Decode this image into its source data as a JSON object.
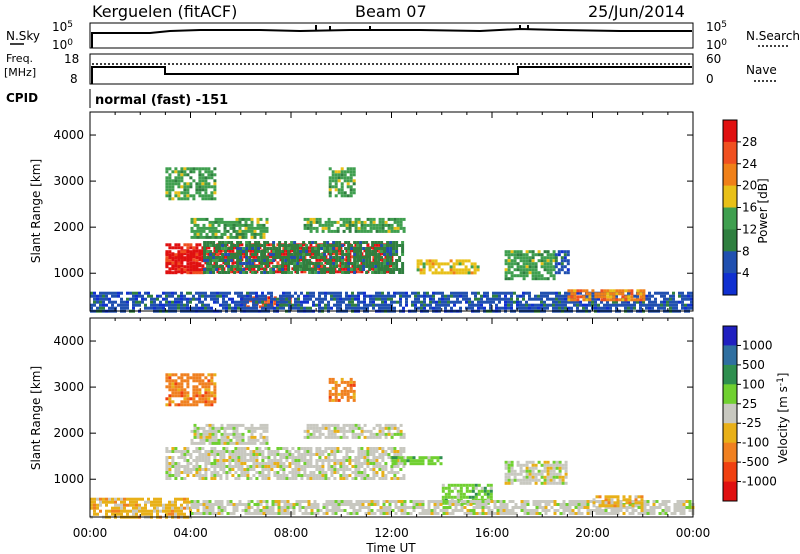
{
  "header": {
    "station": "Kerguelen (fitACF)",
    "beam": "Beam 07",
    "date": "25/Jun/2014"
  },
  "noise_panel": {
    "left_label": "N.Sky",
    "right_label": "N.Search",
    "ticks_left": [
      "10^5",
      "10^0"
    ],
    "ticks_right": [
      "10^5",
      "10^0"
    ]
  },
  "freq_panel": {
    "left_label_line1": "Freq.",
    "left_label_line2": "[MHz]",
    "left_ticks": [
      "18",
      "8"
    ],
    "right_label": "Nave",
    "right_ticks": [
      "60",
      "0"
    ]
  },
  "cpid": {
    "label": "CPID",
    "value": "normal (fast) -151"
  },
  "x_axis": {
    "title": "Time UT",
    "ticks": [
      "00:00",
      "04:00",
      "08:00",
      "12:00",
      "16:00",
      "20:00",
      "00:00"
    ]
  },
  "colors": {
    "power": [
      "#1030d0",
      "#2050b0",
      "#2f7f3f",
      "#3f9f4f",
      "#e8c018",
      "#f08018",
      "#f05020",
      "#e01010"
    ],
    "velocity": [
      "#2020c0",
      "#2f6fa0",
      "#2f8f4f",
      "#70d030",
      "#c8c8c0",
      "#e8b018",
      "#f08020",
      "#f04010",
      "#e01010"
    ]
  },
  "chart_data": [
    {
      "type": "heatmap",
      "title": "",
      "xlabel": "",
      "ylabel": "Slant Range [km]",
      "xlim": [
        0,
        24
      ],
      "ylim": [
        180,
        4500
      ],
      "y_ticks": [
        "1000",
        "2000",
        "3000",
        "4000"
      ],
      "colorbar_label": "Power [dB]",
      "colorbar_ticks": [
        "4",
        "8",
        "12",
        "16",
        "20",
        "24",
        "28"
      ],
      "regions": [
        {
          "x0": 3.0,
          "x1": 12.0,
          "y0": 1050,
          "y1": 1650,
          "level": 7
        },
        {
          "x0": 3.0,
          "x1": 4.5,
          "y0": 1000,
          "y1": 1500,
          "level": 7
        },
        {
          "x0": 4.5,
          "x1": 12.5,
          "y0": 1000,
          "y1": 1700,
          "level": 2
        },
        {
          "x0": 6.0,
          "x1": 8.0,
          "y0": 250,
          "y1": 500,
          "level": 6
        },
        {
          "x0": 4.0,
          "x1": 7.0,
          "y0": 1800,
          "y1": 2200,
          "level": 3
        },
        {
          "x0": 8.5,
          "x1": 12.5,
          "y0": 1900,
          "y1": 2200,
          "level": 3
        },
        {
          "x0": 3.0,
          "x1": 5.0,
          "y0": 2600,
          "y1": 3300,
          "level": 3
        },
        {
          "x0": 9.5,
          "x1": 10.5,
          "y0": 2700,
          "y1": 3300,
          "level": 3
        },
        {
          "x0": 13.0,
          "x1": 15.5,
          "y0": 1000,
          "y1": 1300,
          "level": 4
        },
        {
          "x0": 16.5,
          "x1": 18.5,
          "y0": 900,
          "y1": 1500,
          "level": 3
        },
        {
          "x0": 18.5,
          "x1": 19.0,
          "y0": 1000,
          "y1": 1500,
          "level": 1
        },
        {
          "x0": 0.0,
          "x1": 24.0,
          "y0": 200,
          "y1": 600,
          "level": 1
        },
        {
          "x0": 19.0,
          "x1": 22.0,
          "y0": 400,
          "y1": 650,
          "level": 5
        }
      ]
    },
    {
      "type": "heatmap",
      "title": "",
      "xlabel": "Time UT",
      "ylabel": "Slant Range [km]",
      "xlim": [
        0,
        24
      ],
      "ylim": [
        180,
        4500
      ],
      "y_ticks": [
        "1000",
        "2000",
        "3000",
        "4000"
      ],
      "colorbar_label": "Velocity [m s^-1]",
      "colorbar_ticks": [
        "1000",
        "500",
        "100",
        "25",
        "-25",
        "-100",
        "-500",
        "-1000"
      ],
      "regions": [
        {
          "x0": 3.0,
          "x1": 12.5,
          "y0": 1000,
          "y1": 1700,
          "level": 4
        },
        {
          "x0": 4.0,
          "x1": 7.0,
          "y0": 1800,
          "y1": 2200,
          "level": 4
        },
        {
          "x0": 8.5,
          "x1": 12.5,
          "y0": 1900,
          "y1": 2200,
          "level": 4
        },
        {
          "x0": 3.0,
          "x1": 5.0,
          "y0": 2600,
          "y1": 3300,
          "level": 6
        },
        {
          "x0": 9.5,
          "x1": 10.5,
          "y0": 2700,
          "y1": 3200,
          "level": 6
        },
        {
          "x0": 12.0,
          "x1": 14.0,
          "y0": 1350,
          "y1": 1500,
          "level": 3
        },
        {
          "x0": 14.0,
          "x1": 16.0,
          "y0": 500,
          "y1": 900,
          "level": 3
        },
        {
          "x0": 16.5,
          "x1": 19.0,
          "y0": 900,
          "y1": 1400,
          "level": 4
        },
        {
          "x0": 0.0,
          "x1": 4.0,
          "y0": 200,
          "y1": 600,
          "level": 5
        },
        {
          "x0": 4.0,
          "x1": 24.0,
          "y0": 250,
          "y1": 550,
          "level": 4
        },
        {
          "x0": 20.0,
          "x1": 22.0,
          "y0": 400,
          "y1": 650,
          "level": 5
        }
      ]
    }
  ]
}
